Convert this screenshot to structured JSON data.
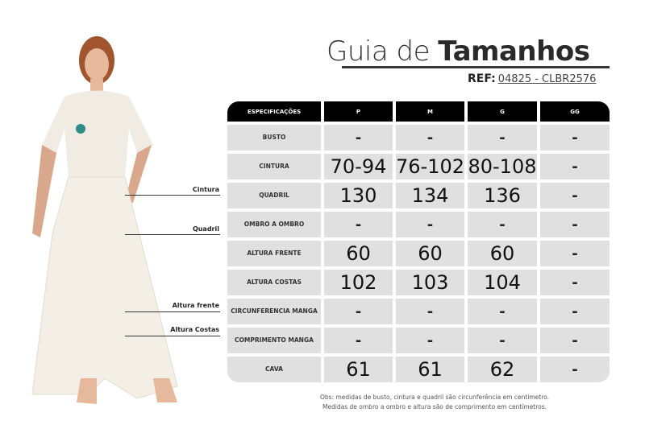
{
  "title": {
    "light": "Guia de ",
    "bold": "Tamanhos"
  },
  "ref": {
    "label": "REF:",
    "value": "04825 - CLBR2576"
  },
  "table": {
    "headers": [
      "ESPECIFICAÇÕES",
      "P",
      "M",
      "G",
      "GG"
    ],
    "rows": [
      {
        "label": "BUSTO",
        "values": [
          "-",
          "-",
          "-",
          "-"
        ]
      },
      {
        "label": "CINTURA",
        "values": [
          "70-94",
          "76-102",
          "80-108",
          "-"
        ]
      },
      {
        "label": "QUADRIL",
        "values": [
          "130",
          "134",
          "136",
          "-"
        ]
      },
      {
        "label": "OMBRO A OMBRO",
        "values": [
          "-",
          "-",
          "-",
          "-"
        ]
      },
      {
        "label": "ALTURA FRENTE",
        "values": [
          "60",
          "60",
          "60",
          "-"
        ]
      },
      {
        "label": "ALTURA COSTAS",
        "values": [
          "102",
          "103",
          "104",
          "-"
        ]
      },
      {
        "label": "CIRCUNFERENCIA MANGA",
        "values": [
          "-",
          "-",
          "-",
          "-"
        ]
      },
      {
        "label": "COMPRIMENTO MANGA",
        "values": [
          "-",
          "-",
          "-",
          "-"
        ]
      },
      {
        "label": "CAVA",
        "values": [
          "61",
          "61",
          "62",
          "-"
        ]
      }
    ]
  },
  "notes": [
    "Obs: medidas de busto, cintura e quadril são circunferência em centímetro.",
    "Medidas de ombro a ombro e altura são de comprimento em centímetros."
  ],
  "photo_labels": [
    "Cintura",
    "Quadril",
    "Altura frente",
    "Altura Costas"
  ]
}
